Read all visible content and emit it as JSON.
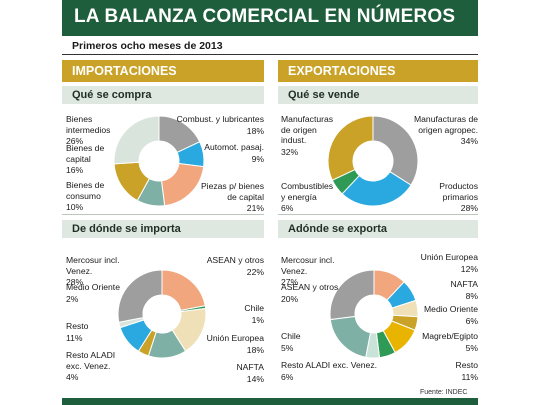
{
  "title": "LA BALANZA COMERCIAL EN NÚMEROS",
  "subtitle": "Primeros ocho meses de 2013",
  "source": "Fuente: INDEC",
  "headers": {
    "imports": "IMPORTACIONES",
    "exports": "EXPORTACIONES",
    "imp_buy": "Qué se compra",
    "exp_sell": "Qué se vende",
    "imp_from": "De dónde se importa",
    "exp_to": "Adónde se exporta"
  },
  "colors": {
    "title_bg": "#1f5e3c",
    "section_bg": "#c9a227",
    "panel_bg": "#dfe8e0"
  },
  "chart_data": [
    {
      "type": "pie",
      "title": "Qué se compra",
      "slices": [
        {
          "label": "Combust. y lubricantes",
          "value": 18,
          "display": "18%",
          "color": "#9e9e9e"
        },
        {
          "label": "Automot. pasaj.",
          "value": 9,
          "display": "9%",
          "color": "#2aa8e0"
        },
        {
          "label": "Piezas p/ bienes de capital",
          "value": 21,
          "display": "21%",
          "color": "#f2a67e"
        },
        {
          "label": "Bienes de consumo",
          "value": 10,
          "display": "10%",
          "color": "#7fb0a5"
        },
        {
          "label": "Bienes de capital",
          "value": 16,
          "display": "16%",
          "color": "#c9a227"
        },
        {
          "label": "Bienes intermedios",
          "value": 26,
          "display": "26%",
          "color": "#d9e4dc"
        }
      ]
    },
    {
      "type": "pie",
      "title": "Qué se vende",
      "slices": [
        {
          "label": "Manufacturas de origen agropec.",
          "value": 34,
          "display": "34%",
          "color": "#9e9e9e"
        },
        {
          "label": "Productos primarios",
          "value": 28,
          "display": "28%",
          "color": "#2aa8e0"
        },
        {
          "label": "Combustibles y energía",
          "value": 6,
          "display": "6%",
          "color": "#2e9a55"
        },
        {
          "label": "Manufacturas de origen indust.",
          "value": 32,
          "display": "32%",
          "color": "#c9a227"
        }
      ]
    },
    {
      "type": "pie",
      "title": "De dónde se importa",
      "slices": [
        {
          "label": "ASEAN y otros",
          "value": 22,
          "display": "22%",
          "color": "#f2a67e"
        },
        {
          "label": "Chile",
          "value": 1,
          "display": "1%",
          "color": "#2e9a55"
        },
        {
          "label": "Unión Europea",
          "value": 18,
          "display": "18%",
          "color": "#efe0b8"
        },
        {
          "label": "NAFTA",
          "value": 14,
          "display": "14%",
          "color": "#7fb0a5"
        },
        {
          "label": "Resto ALADI exc. Venez.",
          "value": 4,
          "display": "4%",
          "color": "#c9a227"
        },
        {
          "label": "Resto",
          "value": 11,
          "display": "11%",
          "color": "#2aa8e0"
        },
        {
          "label": "Medio Oriente",
          "value": 2,
          "display": "2%",
          "color": "#d9e4dc"
        },
        {
          "label": "Mercosur incl. Venez.",
          "value": 28,
          "display": "28%",
          "color": "#9e9e9e"
        }
      ]
    },
    {
      "type": "pie",
      "title": "Adónde se exporta",
      "slices": [
        {
          "label": "Unión Europea",
          "value": 12,
          "display": "12%",
          "color": "#f2a67e"
        },
        {
          "label": "NAFTA",
          "value": 8,
          "display": "8%",
          "color": "#2aa8e0"
        },
        {
          "label": "Medio Oriente",
          "value": 6,
          "display": "6%",
          "color": "#efe0b8"
        },
        {
          "label": "Magreb/Egipto",
          "value": 5,
          "display": "5%",
          "color": "#c9a227"
        },
        {
          "label": "Resto",
          "value": 11,
          "display": "11%",
          "color": "#e8b400"
        },
        {
          "label": "Resto ALADI exc. Venez.",
          "value": 6,
          "display": "6%",
          "color": "#2e9a55"
        },
        {
          "label": "Chile",
          "value": 5,
          "display": "5%",
          "color": "#c9e3d8"
        },
        {
          "label": "ASEAN y otros",
          "value": 20,
          "display": "20%",
          "color": "#7fb0a5"
        },
        {
          "label": "Mercosur incl. Venez.",
          "value": 27,
          "display": "27%",
          "color": "#9e9e9e"
        }
      ]
    }
  ],
  "labels": {
    "c0": [
      {
        "t": "Bienes intermedios",
        "v": "26%"
      },
      {
        "t": "Bienes de capital",
        "v": "16%"
      },
      {
        "t": "Bienes de consumo",
        "v": "10%"
      },
      {
        "t": "Combust. y lubricantes",
        "v": "18%"
      },
      {
        "t": "Automot. pasaj.",
        "v": "9%"
      },
      {
        "t": "Piezas p/ bienes de capital",
        "v": "21%"
      }
    ],
    "c1": [
      {
        "t": "Manufacturas de origen indust.",
        "v": "32%"
      },
      {
        "t": "Combustibles y energía",
        "v": "6%"
      },
      {
        "t": "Manufacturas de origen agropec.",
        "v": "34%"
      },
      {
        "t": "Productos primarios",
        "v": "28%"
      }
    ],
    "c2": [
      {
        "t": "Mercosur incl. Venez.",
        "v": "28%"
      },
      {
        "t": "Medio Oriente",
        "v": "2%"
      },
      {
        "t": "Resto",
        "v": "11%"
      },
      {
        "t": "Resto ALADI exc. Venez.",
        "v": "4%"
      },
      {
        "t": "ASEAN y otros",
        "v": "22%"
      },
      {
        "t": "Chile",
        "v": "1%"
      },
      {
        "t": "Unión Europea",
        "v": "18%"
      },
      {
        "t": "NAFTA",
        "v": "14%"
      }
    ],
    "c3": [
      {
        "t": "Mercosur incl. Venez.",
        "v": "27%"
      },
      {
        "t": "ASEAN y otros",
        "v": "20%"
      },
      {
        "t": "Chile",
        "v": "5%"
      },
      {
        "t": "Resto ALADI exc. Venez.",
        "v": "6%"
      },
      {
        "t": "Unión Europea",
        "v": "12%"
      },
      {
        "t": "NAFTA",
        "v": "8%"
      },
      {
        "t": "Medio Oriente",
        "v": "6%"
      },
      {
        "t": "Magreb/Egipto",
        "v": "5%"
      },
      {
        "t": "Resto",
        "v": "11%"
      }
    ]
  }
}
